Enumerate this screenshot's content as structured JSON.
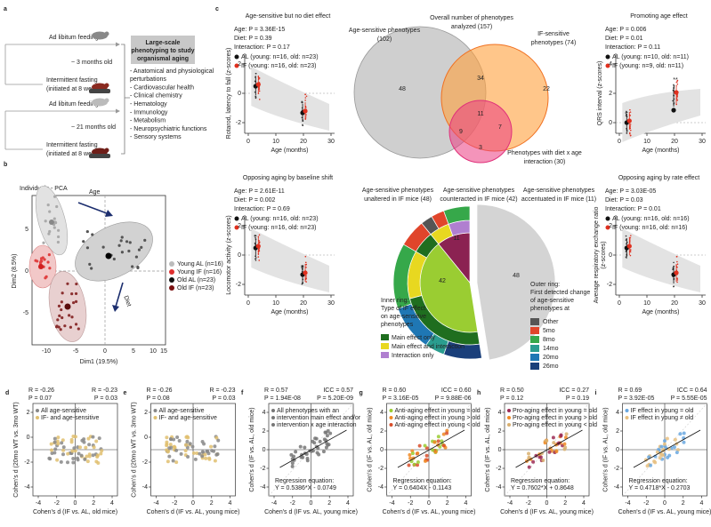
{
  "panel_a": {
    "label": "a",
    "young_al": "Ad libitum feeding",
    "young_age": "~ 3 months old",
    "young_if": [
      "Intermittent fasting",
      "(initiated at 8 weeks)"
    ],
    "old_al": "Ad libitum feeding",
    "old_age": "~ 21 months old",
    "old_if": [
      "Intermittent fasting",
      "(initiated at 8 weeks)"
    ],
    "box_title": [
      "Large-scale",
      "phenotyping to study",
      "organismal aging"
    ],
    "domains": [
      "- Anatomical and physiological",
      "  perturbations",
      "- Cardiovascular health",
      "- Clinical chemistry",
      "- Hematology",
      "- Immunology",
      "- Metabolism",
      "- Neuropsychiatric functions",
      "- Sensory systems"
    ]
  },
  "panel_b": {
    "label": "b",
    "title": "Individuals - PCA",
    "arrow_age": "Age",
    "arrow_diet": "Diet",
    "legend": [
      "Young AL (n=16)",
      "Young IF (n=16)",
      "Old AL (n=23)",
      "Old IF (n=23)"
    ],
    "x_axis_label": "Dim1 (19.5%)",
    "y_axis_label": "Dim2 (8.5%)",
    "x_ticks": [
      "-10",
      "-5",
      "0",
      "5",
      "10",
      "15"
    ],
    "y_ticks": [
      "5",
      "0",
      "-5"
    ]
  },
  "panel_c": {
    "label": "c",
    "rotarod": {
      "title": "Age-sensitive but no diet effect",
      "stats": [
        "Age: P = 3.36E-15",
        "Diet: P = 0.39",
        "Interaction: P = 0.17"
      ],
      "legend": [
        "AL (young: n=16, old: n=23)",
        "IF (young: n=16, old: n=23)"
      ],
      "y_axis_label": [
        "Rotarod, latency to fall (z-scores)"
      ],
      "y_ticks": [
        "2",
        "0",
        "-2"
      ],
      "x_ticks": [
        "0",
        "10",
        "20",
        "30"
      ],
      "x_axis_label": "Age (months)"
    },
    "qrs": {
      "title": "Promoting age effect",
      "stats": [
        "Age: P = 0.006",
        "Diet: P = 0.01",
        "Interaction: P = 0.11"
      ],
      "legend": [
        "AL (young: n=10, old: n=11)",
        "IF (young: n=9, old: n=11)"
      ],
      "y_axis_label": [
        "QRS interval (z-scores)"
      ],
      "y_ticks": [
        "4",
        "2",
        "0"
      ],
      "x_ticks": [
        "0",
        "10",
        "20",
        "30"
      ],
      "x_axis_label": "Age (months)",
      "significance": "**"
    },
    "locomotor": {
      "title": "Opposing aging by baseline shift",
      "stats": [
        "Age: P = 2.61E-11",
        "Diet: P = 0.002",
        "Interaction: P = 0.69"
      ],
      "legend": [
        "AL (young: n=16, old: n=23)",
        "IF (young: n=16, old: n=23)"
      ],
      "y_axis_label": [
        "Locomotor activity (z-scores)"
      ],
      "y_ticks": [
        "2",
        "0",
        "-2"
      ],
      "x_ticks": [
        "0",
        "10",
        "20",
        "30"
      ],
      "x_axis_label": "Age (months)"
    },
    "rer": {
      "title": "Opposing aging by rate effect",
      "stats": [
        "Age: P = 3.03E-05",
        "Diet: P = 0.03",
        "Interaction: P = 0.01"
      ],
      "legend": [
        "AL (young: n=16, old: n=16)",
        "IF (young: n=16, old: n=16)"
      ],
      "y_axis_label": [
        "Average respiratory exchange ratio",
        "(z-scores)"
      ],
      "y_ticks": [
        "2",
        "0",
        "-2"
      ],
      "x_ticks": [
        "0",
        "10",
        "20",
        "30"
      ],
      "x_axis_label": "Age (months)"
    },
    "venn": {
      "overall": [
        "Overall number of phenotypes",
        "analyzed (157)"
      ],
      "age_sensitive": [
        "Age-sensitive phenotypes",
        "(102)"
      ],
      "if_sensitive": [
        "IF-sensitive",
        "phenotypes (74)"
      ],
      "interaction": [
        "Phenotypes with diet x age",
        "interaction (30)"
      ],
      "counts": [
        "48",
        "34",
        "22",
        "11",
        "9",
        "7",
        "3"
      ]
    },
    "pie": {
      "unaltered": [
        "Age-sensitive phenotypes",
        "unaltered in IF mice (48)"
      ],
      "counteracted": [
        "Age-sensitive phenotypes",
        "counteracted in IF mice (42)"
      ],
      "accentuated": [
        "Age-sensitive phenotypes",
        "accentuated in IF mice (11)"
      ],
      "counts": [
        "48",
        "42",
        "11"
      ],
      "inner_title": [
        "Inner ring:",
        "Type of IF effect",
        "on age-sensitive",
        "phenotypes"
      ],
      "inner_legend": [
        "Main effect only",
        "Main effect and interaction",
        "Interaction only"
      ],
      "outer_title": [
        "Outer ring:",
        "First detected change",
        "of age-sensitive",
        "phenotypes at"
      ],
      "outer_legend": [
        "Other",
        "5mo",
        "8mo",
        "14mo",
        "20mo",
        "26mo"
      ]
    }
  },
  "panels_d_to_i": [
    {
      "label": "d",
      "stats_left": [
        "R = -0.26",
        "P = 0.07"
      ],
      "stats_right": [
        "R = -0.23",
        "P = 0.03"
      ],
      "legend": [
        "All age-sensitive",
        "IF- and age-sensitive"
      ],
      "regression": [],
      "x_axis_label": "Cohen's d (IF vs. AL, old mice)",
      "y_axis_label": "Cohen's d (20mo WT vs. 3mo WT)",
      "x_ticks": [
        "-4",
        "-2",
        "0",
        "2",
        "4"
      ],
      "y_ticks": [
        "2",
        "0",
        "-2",
        "-4"
      ]
    },
    {
      "label": "e",
      "stats_left": [
        "R = -0.26",
        "P = 0.08"
      ],
      "stats_right": [
        "R = -0.23",
        "P = 0.03"
      ],
      "legend": [
        "All age-sensitive",
        "IF- and age-sensitive"
      ],
      "regression": [],
      "x_axis_label": "Cohen's d (IF vs. AL, young mice)",
      "y_axis_label": "Cohen's d (20mo WT vs. 3mo WT)",
      "x_ticks": [
        "-4",
        "-2",
        "0",
        "2",
        "4"
      ],
      "y_ticks": [
        "2",
        "0",
        "-2",
        "-4"
      ]
    },
    {
      "label": "f",
      "stats_left": [
        "R = 0.57",
        "P = 1.94E-08"
      ],
      "stats_right": [
        "ICC = 0.57",
        "P = 5.20E-09"
      ],
      "legend": [
        "All phenotypes with an",
        "intervention main effect and/or",
        "intervention x age interaction"
      ],
      "regression": [
        "Regression equation:",
        "Y = 0.5386*X - 0.0749"
      ],
      "x_axis_label": "Cohen's d (IF vs. AL, young mice)",
      "y_axis_label": "Cohen's d (IF vs. AL, old mice)",
      "x_ticks": [
        "-4",
        "-2",
        "0",
        "2",
        "4"
      ],
      "y_ticks": [
        "4",
        "2",
        "0",
        "-2",
        "-4"
      ]
    },
    {
      "label": "g",
      "stats_left": [
        "R = 0.60",
        "P = 3.16E-05"
      ],
      "stats_right": [
        "ICC = 0.60",
        "P = 9.88E-06"
      ],
      "legend": [
        "Anti-aging effect in young = old",
        "Anti-aging effect in young > old",
        "Anti-aging effect in young < old"
      ],
      "regression": [
        "Regression equation:",
        "Y = 0.6404X - 0.1143"
      ],
      "x_axis_label": "Cohen's d (IF vs. AL, young mice)",
      "y_axis_label": "Cohen's d (IF vs. AL, old mice)",
      "x_ticks": [
        "-4",
        "-2",
        "0",
        "2",
        "4"
      ],
      "y_ticks": [
        "4",
        "2",
        "0",
        "-2",
        "-4"
      ]
    },
    {
      "label": "h",
      "stats_left": [
        "R = 0.50",
        "P = 0.12"
      ],
      "stats_right": [
        "ICC = 0.27",
        "P = 0.19"
      ],
      "legend": [
        "Pro-aging effect in young = old",
        "Pro-aging effect in young > old",
        "Pro-aging effect in young < old"
      ],
      "regression": [
        "Regression equation:",
        "Y = 0.7602*X + 0.8648"
      ],
      "x_axis_label": "Cohen's d (IF vs. AL, young mice)",
      "y_axis_label": "Cohen's d (IF vs. AL, old mice)",
      "x_ticks": [
        "-4",
        "-2",
        "0",
        "2",
        "4"
      ],
      "y_ticks": [
        "4",
        "2",
        "0",
        "-2",
        "-4"
      ]
    },
    {
      "label": "i",
      "stats_left": [
        "R = 0.69",
        "P = 3.92E-05"
      ],
      "stats_right": [
        "ICC = 0.64",
        "P = 5.55E-05"
      ],
      "legend": [
        "IF effect in young = old",
        "IF effect in young ≠ old"
      ],
      "regression": [
        "Regression equation:",
        "Y = 0.4718*X - 0.2703"
      ],
      "x_axis_label": "Cohen's d (IF vs. AL, young mice)",
      "y_axis_label": "Cohen's d (IF vs. AL, old mice)",
      "x_ticks": [
        "-4",
        "-2",
        "0",
        "2",
        "4"
      ],
      "y_ticks": [
        "4",
        "2",
        "0",
        "-2",
        "-4"
      ]
    }
  ]
}
